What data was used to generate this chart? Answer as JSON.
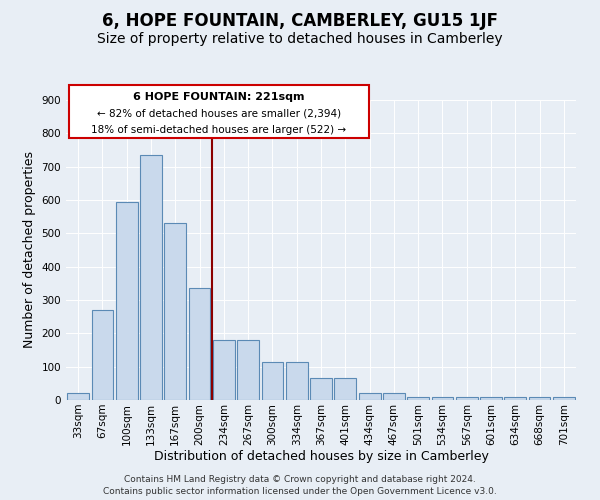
{
  "title": "6, HOPE FOUNTAIN, CAMBERLEY, GU15 1JF",
  "subtitle": "Size of property relative to detached houses in Camberley",
  "xlabel": "Distribution of detached houses by size in Camberley",
  "ylabel": "Number of detached properties",
  "categories": [
    "33sqm",
    "67sqm",
    "100sqm",
    "133sqm",
    "167sqm",
    "200sqm",
    "234sqm",
    "267sqm",
    "300sqm",
    "334sqm",
    "367sqm",
    "401sqm",
    "434sqm",
    "467sqm",
    "501sqm",
    "534sqm",
    "567sqm",
    "601sqm",
    "634sqm",
    "668sqm",
    "701sqm"
  ],
  "values": [
    20,
    270,
    595,
    735,
    530,
    335,
    180,
    180,
    115,
    115,
    65,
    65,
    20,
    20,
    10,
    10,
    10,
    10,
    10,
    8,
    8
  ],
  "bar_color": "#c9d9ec",
  "bar_edge_color": "#5b8ab5",
  "vline_color": "#8b0000",
  "annotation_title": "6 HOPE FOUNTAIN: 221sqm",
  "annotation_line1": "← 82% of detached houses are smaller (2,394)",
  "annotation_line2": "18% of semi-detached houses are larger (522) →",
  "annotation_box_color": "#ffffff",
  "annotation_box_edge": "#cc0000",
  "footer1": "Contains HM Land Registry data © Crown copyright and database right 2024.",
  "footer2": "Contains public sector information licensed under the Open Government Licence v3.0.",
  "ylim": [
    0,
    900
  ],
  "yticks": [
    0,
    100,
    200,
    300,
    400,
    500,
    600,
    700,
    800,
    900
  ],
  "bg_color": "#e8eef5",
  "plot_bg_color": "#e8eef5",
  "title_fontsize": 12,
  "subtitle_fontsize": 10,
  "axis_label_fontsize": 9,
  "tick_fontsize": 7.5,
  "footer_fontsize": 6.5
}
